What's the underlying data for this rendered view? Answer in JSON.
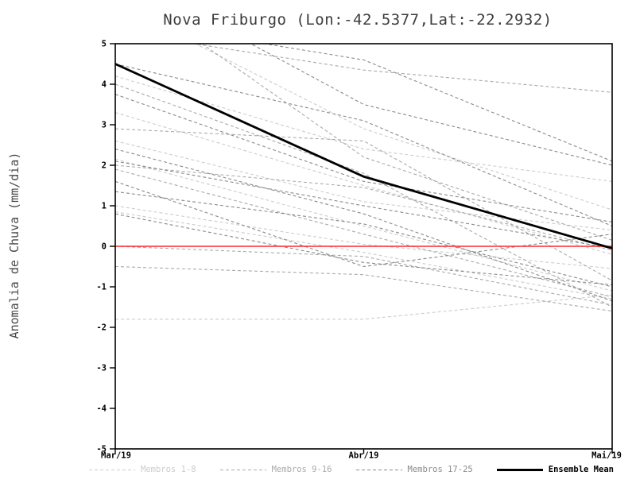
{
  "chart_data": {
    "type": "line",
    "title": "Nova Friburgo (Lon:-42.5377,Lat:-22.2932)",
    "ylabel": "Anomalia de Chuva (mm/dia)",
    "x_categories": [
      "Mar/19",
      "Abr/19",
      "Mai/19"
    ],
    "ylim": [
      -5,
      5
    ],
    "yticks": [
      -5,
      -4,
      -3,
      -2,
      -1,
      0,
      1,
      2,
      3,
      4,
      5
    ],
    "grid": false,
    "legend_position": "bottom",
    "axis_color": "#000000",
    "zero_line": {
      "y": 0,
      "color": "#ff2a2a"
    },
    "groups": [
      {
        "name": "Membros 1-8",
        "color": "#cccccc",
        "dash": "4 3",
        "series": [
          [
            3.3,
            1.5,
            -0.2
          ],
          [
            2.6,
            1.1,
            0.4
          ],
          [
            2.15,
            0.5,
            -1.1
          ],
          [
            1.0,
            0.05,
            -0.55
          ],
          [
            0.85,
            -0.15,
            -1.3
          ],
          [
            -1.8,
            -1.8,
            -1.2
          ],
          [
            6.0,
            2.9,
            0.9
          ],
          [
            4.2,
            2.4,
            1.6
          ]
        ]
      },
      {
        "name": "Membros 9-16",
        "color": "#aaaaaa",
        "dash": "4 3",
        "series": [
          [
            5.3,
            4.35,
            3.8
          ],
          [
            4.0,
            1.8,
            -1.5
          ],
          [
            2.0,
            1.45,
            -0.1
          ],
          [
            1.9,
            0.3,
            -1.25
          ],
          [
            0.0,
            -0.25,
            -1.45
          ],
          [
            -0.5,
            -0.7,
            -1.6
          ],
          [
            6.5,
            2.2,
            0.15
          ],
          [
            2.9,
            2.6,
            -0.85
          ]
        ]
      },
      {
        "name": "Membros 17-25",
        "color": "#8a8a8a",
        "dash": "4 3",
        "series": [
          [
            5.6,
            4.6,
            2.1
          ],
          [
            4.5,
            3.1,
            0.5
          ],
          [
            3.75,
            1.6,
            0.6
          ],
          [
            2.1,
            1.0,
            -0.05
          ],
          [
            1.35,
            0.55,
            -1.0
          ],
          [
            0.8,
            -0.4,
            -0.95
          ],
          [
            2.4,
            0.8,
            -1.35
          ],
          [
            6.8,
            3.5,
            2.0
          ],
          [
            1.6,
            -0.5,
            0.3
          ]
        ]
      }
    ],
    "ensemble_mean": {
      "name": "Ensemble Mean",
      "color": "#000000",
      "values": [
        4.5,
        1.72,
        -0.05
      ]
    }
  }
}
